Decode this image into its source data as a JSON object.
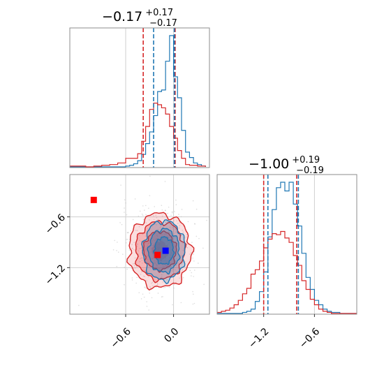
{
  "chart_data": [
    {
      "type": "histogram",
      "panel": "top-left marginal",
      "title": {
        "main": "−0.17",
        "upper": "+0.17",
        "lower": "−0.17"
      },
      "xlim": [
        -1.3,
        0.45
      ],
      "grid": true,
      "vlines": [
        {
          "color": "#d62728",
          "x": -0.38,
          "style": "dashed"
        },
        {
          "color": "#d62728",
          "x": 0.02,
          "style": "dashed"
        },
        {
          "color": "#1f77b4",
          "x": -0.25,
          "style": "dashed"
        },
        {
          "color": "#1f77b4",
          "x": 0.01,
          "style": "dashed"
        }
      ],
      "series": [
        {
          "color": "#1f77b4",
          "bins": [
            -1.3,
            -1.25,
            -1.2,
            -1.15,
            -1.1,
            -1.05,
            -1.0,
            -0.95,
            -0.9,
            -0.85,
            -0.8,
            -0.75,
            -0.7,
            -0.65,
            -0.6,
            -0.55,
            -0.5,
            -0.45,
            -0.4,
            -0.35,
            -0.3,
            -0.25,
            -0.2,
            -0.15,
            -0.1,
            -0.05,
            0.0,
            0.05,
            0.1,
            0.15,
            0.2,
            0.25,
            0.3,
            0.35,
            0.4
          ],
          "counts": [
            0,
            0,
            0,
            0,
            0,
            0,
            0,
            0,
            0,
            0,
            0,
            0,
            0,
            0,
            1,
            2,
            4,
            8,
            16,
            30,
            45,
            66,
            97,
            99,
            136,
            169,
            116,
            89,
            47,
            19,
            12,
            5,
            3,
            1
          ]
        },
        {
          "color": "#d62728",
          "bins": [
            -1.3,
            -1.2,
            -1.1,
            -1.0,
            -0.9,
            -0.8,
            -0.7,
            -0.6,
            -0.5,
            -0.45,
            -0.4,
            -0.35,
            -0.3,
            -0.25,
            -0.2,
            -0.15,
            -0.1,
            -0.05,
            0.0,
            0.05,
            0.1,
            0.15,
            0.2,
            0.3,
            0.4
          ],
          "counts": [
            1,
            1,
            0,
            1,
            2,
            3,
            5,
            11,
            11,
            17,
            33,
            52,
            74,
            82,
            80,
            76,
            68,
            52,
            37,
            21,
            11,
            3,
            2,
            1
          ]
        }
      ]
    },
    {
      "type": "contour-scatter",
      "panel": "bottom-left joint",
      "xlim": [
        -1.3,
        0.45
      ],
      "ylim": [
        -1.75,
        -0.1
      ],
      "xticks": [
        {
          "value": -0.6,
          "label": "−0.6"
        },
        {
          "value": 0.0,
          "label": "0.0"
        }
      ],
      "yticks": [
        {
          "value": -0.6,
          "label": "−0.6"
        },
        {
          "value": -1.2,
          "label": "−1.2"
        }
      ],
      "grid": true,
      "markers": [
        {
          "color": "#ff0000",
          "shape": "square",
          "x": -1.0,
          "y": -0.4
        },
        {
          "color": "#ff0000",
          "shape": "square",
          "x": -0.2,
          "y": -1.05
        },
        {
          "color": "#0000ff",
          "shape": "square",
          "x": -0.1,
          "y": -1.0
        }
      ],
      "contours": [
        {
          "color": "#d62728",
          "cx": -0.17,
          "cy": -1.0,
          "sigma_x": 0.17,
          "sigma_y": 0.19
        },
        {
          "color": "#1f77b4",
          "cx": -0.12,
          "cy": -1.0,
          "sigma_x": 0.12,
          "sigma_y": 0.16
        }
      ]
    },
    {
      "type": "histogram",
      "panel": "bottom-right marginal",
      "title": {
        "main": "−1.00",
        "upper": "+0.19",
        "lower": "−0.19"
      },
      "xlim": [
        -1.75,
        -0.1
      ],
      "xticks": [
        {
          "value": -1.2,
          "label": "−1.2"
        },
        {
          "value": -0.6,
          "label": "−0.6"
        }
      ],
      "grid": true,
      "vlines": [
        {
          "color": "#d62728",
          "x": -1.2,
          "style": "dashed"
        },
        {
          "color": "#d62728",
          "x": -0.81,
          "style": "dashed"
        },
        {
          "color": "#1f77b4",
          "x": -1.15,
          "style": "dashed"
        },
        {
          "color": "#1f77b4",
          "x": -0.79,
          "style": "dashed"
        }
      ],
      "series": [
        {
          "color": "#1f77b4",
          "bins": [
            -1.75,
            -1.65,
            -1.55,
            -1.45,
            -1.4,
            -1.35,
            -1.3,
            -1.25,
            -1.2,
            -1.15,
            -1.1,
            -1.05,
            -1.0,
            -0.95,
            -0.9,
            -0.85,
            -0.8,
            -0.75,
            -0.7,
            -0.65,
            -0.6,
            -0.55,
            -0.5,
            -0.45,
            -0.4,
            -0.3,
            -0.2,
            -0.1
          ],
          "counts": [
            0,
            0,
            0,
            1,
            2,
            4,
            11,
            20,
            38,
            70,
            95,
            115,
            120,
            112,
            120,
            100,
            80,
            55,
            33,
            22,
            12,
            8,
            4,
            2,
            1,
            0,
            0
          ]
        },
        {
          "color": "#d62728",
          "bins": [
            -1.75,
            -1.7,
            -1.65,
            -1.6,
            -1.55,
            -1.5,
            -1.45,
            -1.4,
            -1.35,
            -1.3,
            -1.25,
            -1.2,
            -1.15,
            -1.1,
            -1.05,
            -1.0,
            -0.95,
            -0.9,
            -0.85,
            -0.8,
            -0.75,
            -0.7,
            -0.65,
            -0.6,
            -0.55,
            -0.5,
            -0.45,
            -0.4,
            -0.3,
            -0.2,
            -0.1
          ],
          "counts": [
            1,
            2,
            3,
            5,
            8,
            12,
            18,
            23,
            36,
            40,
            48,
            60,
            68,
            73,
            72,
            75,
            69,
            65,
            53,
            44,
            30,
            22,
            13,
            8,
            4,
            2,
            1,
            0,
            0,
            0
          ]
        }
      ]
    }
  ]
}
